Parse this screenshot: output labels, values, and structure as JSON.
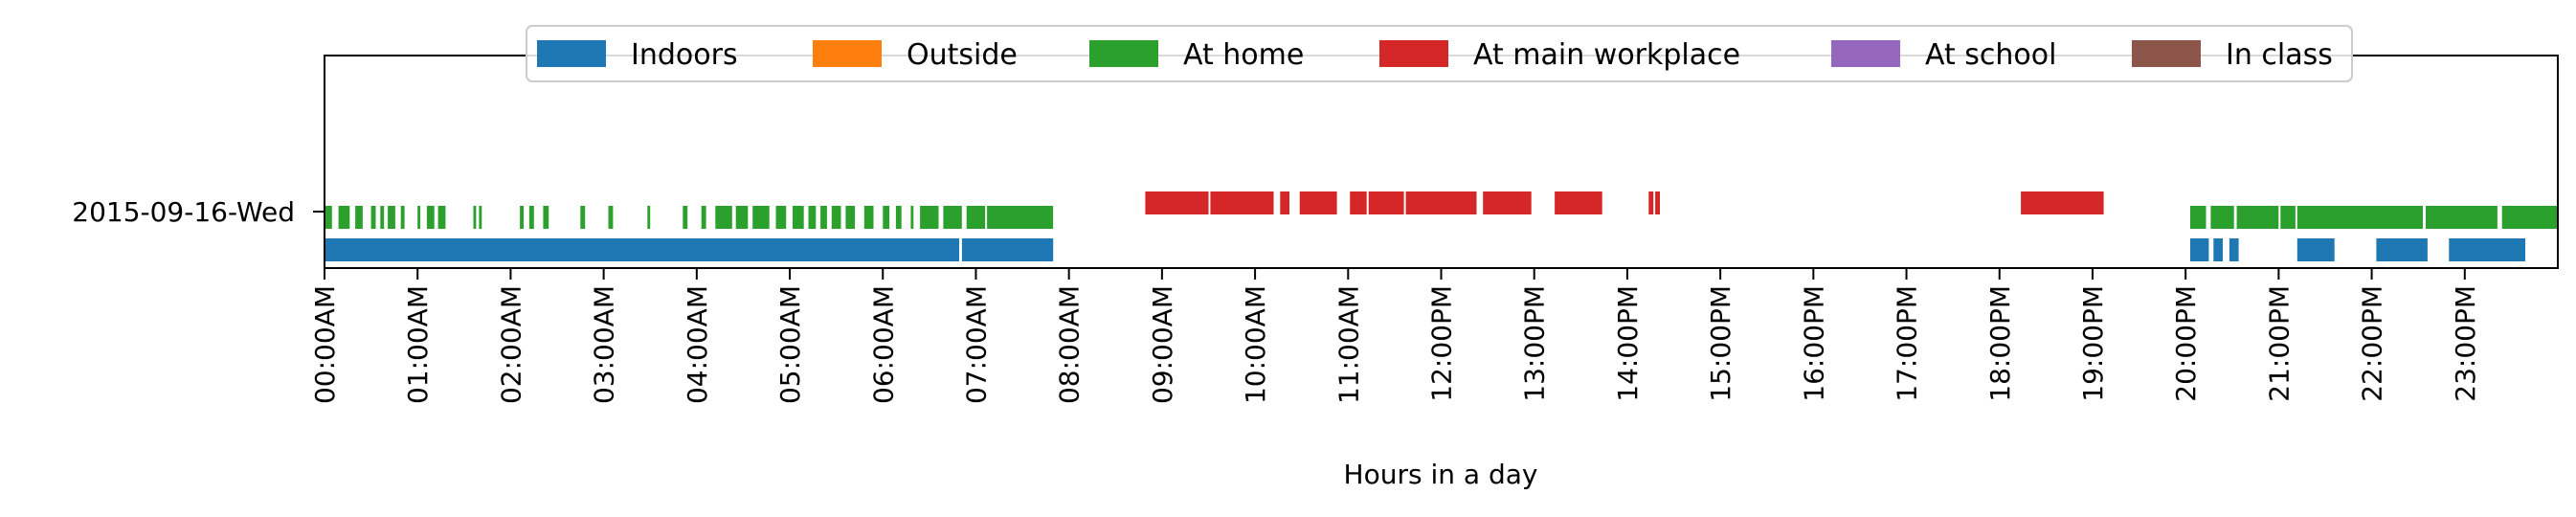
{
  "chart_data": {
    "type": "timeline",
    "xlabel": "Hours in a day",
    "xlim": [
      0,
      24
    ],
    "x_ticks": [
      "00:00AM",
      "01:00AM",
      "02:00AM",
      "03:00AM",
      "04:00AM",
      "05:00AM",
      "06:00AM",
      "07:00AM",
      "08:00AM",
      "09:00AM",
      "10:00AM",
      "11:00AM",
      "12:00PM",
      "13:00PM",
      "14:00PM",
      "15:00PM",
      "16:00PM",
      "17:00PM",
      "18:00PM",
      "19:00PM",
      "20:00PM",
      "21:00PM",
      "22:00PM",
      "23:00PM"
    ],
    "y_categories": [
      "2015-09-16-Wed"
    ],
    "legend": {
      "placement": "top-center",
      "entries": [
        {
          "label": "Indoors",
          "color": "#1f77b4"
        },
        {
          "label": "Outside",
          "color": "#ff7f0e"
        },
        {
          "label": "At home",
          "color": "#2ca02c"
        },
        {
          "label": "At main workplace",
          "color": "#d62728"
        },
        {
          "label": "At school",
          "color": "#9467bd"
        },
        {
          "label": "In class",
          "color": "#8c564b"
        }
      ]
    },
    "series": [
      {
        "name": "Indoors",
        "color": "#1f77b4",
        "intervals": [
          [
            0.0,
            6.82
          ],
          [
            6.85,
            7.83
          ],
          [
            20.05,
            20.25
          ],
          [
            20.3,
            20.4
          ],
          [
            20.47,
            20.57
          ],
          [
            21.2,
            21.6
          ],
          [
            22.05,
            22.6
          ],
          [
            22.83,
            23.65
          ]
        ]
      },
      {
        "name": "At home",
        "color": "#2ca02c",
        "intervals": [
          [
            0.0,
            0.08
          ],
          [
            0.15,
            0.27
          ],
          [
            0.33,
            0.41
          ],
          [
            0.5,
            0.55
          ],
          [
            0.6,
            0.64
          ],
          [
            0.68,
            0.76
          ],
          [
            0.82,
            0.86
          ],
          [
            1.0,
            1.03
          ],
          [
            1.1,
            1.18
          ],
          [
            1.22,
            1.3
          ],
          [
            1.6,
            1.63
          ],
          [
            1.66,
            1.69
          ],
          [
            2.1,
            2.14
          ],
          [
            2.2,
            2.25
          ],
          [
            2.35,
            2.41
          ],
          [
            2.75,
            2.8
          ],
          [
            3.05,
            3.1
          ],
          [
            3.47,
            3.5
          ],
          [
            3.85,
            3.9
          ],
          [
            4.05,
            4.1
          ],
          [
            4.2,
            4.38
          ],
          [
            4.42,
            4.55
          ],
          [
            4.6,
            4.78
          ],
          [
            4.85,
            4.96
          ],
          [
            5.03,
            5.15
          ],
          [
            5.2,
            5.28
          ],
          [
            5.33,
            5.4
          ],
          [
            5.45,
            5.55
          ],
          [
            5.6,
            5.7
          ],
          [
            5.8,
            5.9
          ],
          [
            6.0,
            6.07
          ],
          [
            6.14,
            6.2
          ],
          [
            6.3,
            6.33
          ],
          [
            6.4,
            6.6
          ],
          [
            6.65,
            6.85
          ],
          [
            6.9,
            7.1
          ],
          [
            7.12,
            7.83
          ],
          [
            20.05,
            20.22
          ],
          [
            20.27,
            20.52
          ],
          [
            20.55,
            21.0
          ],
          [
            21.02,
            21.18
          ],
          [
            21.2,
            22.55
          ],
          [
            22.58,
            23.35
          ],
          [
            23.4,
            24.0
          ]
        ]
      },
      {
        "name": "At main workplace",
        "color": "#d62728",
        "intervals": [
          [
            8.82,
            9.5
          ],
          [
            9.52,
            10.2
          ],
          [
            10.27,
            10.37
          ],
          [
            10.48,
            10.88
          ],
          [
            11.02,
            11.2
          ],
          [
            11.22,
            11.6
          ],
          [
            11.62,
            12.38
          ],
          [
            12.45,
            12.97
          ],
          [
            13.22,
            13.73
          ],
          [
            14.23,
            14.28
          ],
          [
            14.3,
            14.35
          ],
          [
            18.23,
            19.12
          ]
        ]
      }
    ]
  }
}
